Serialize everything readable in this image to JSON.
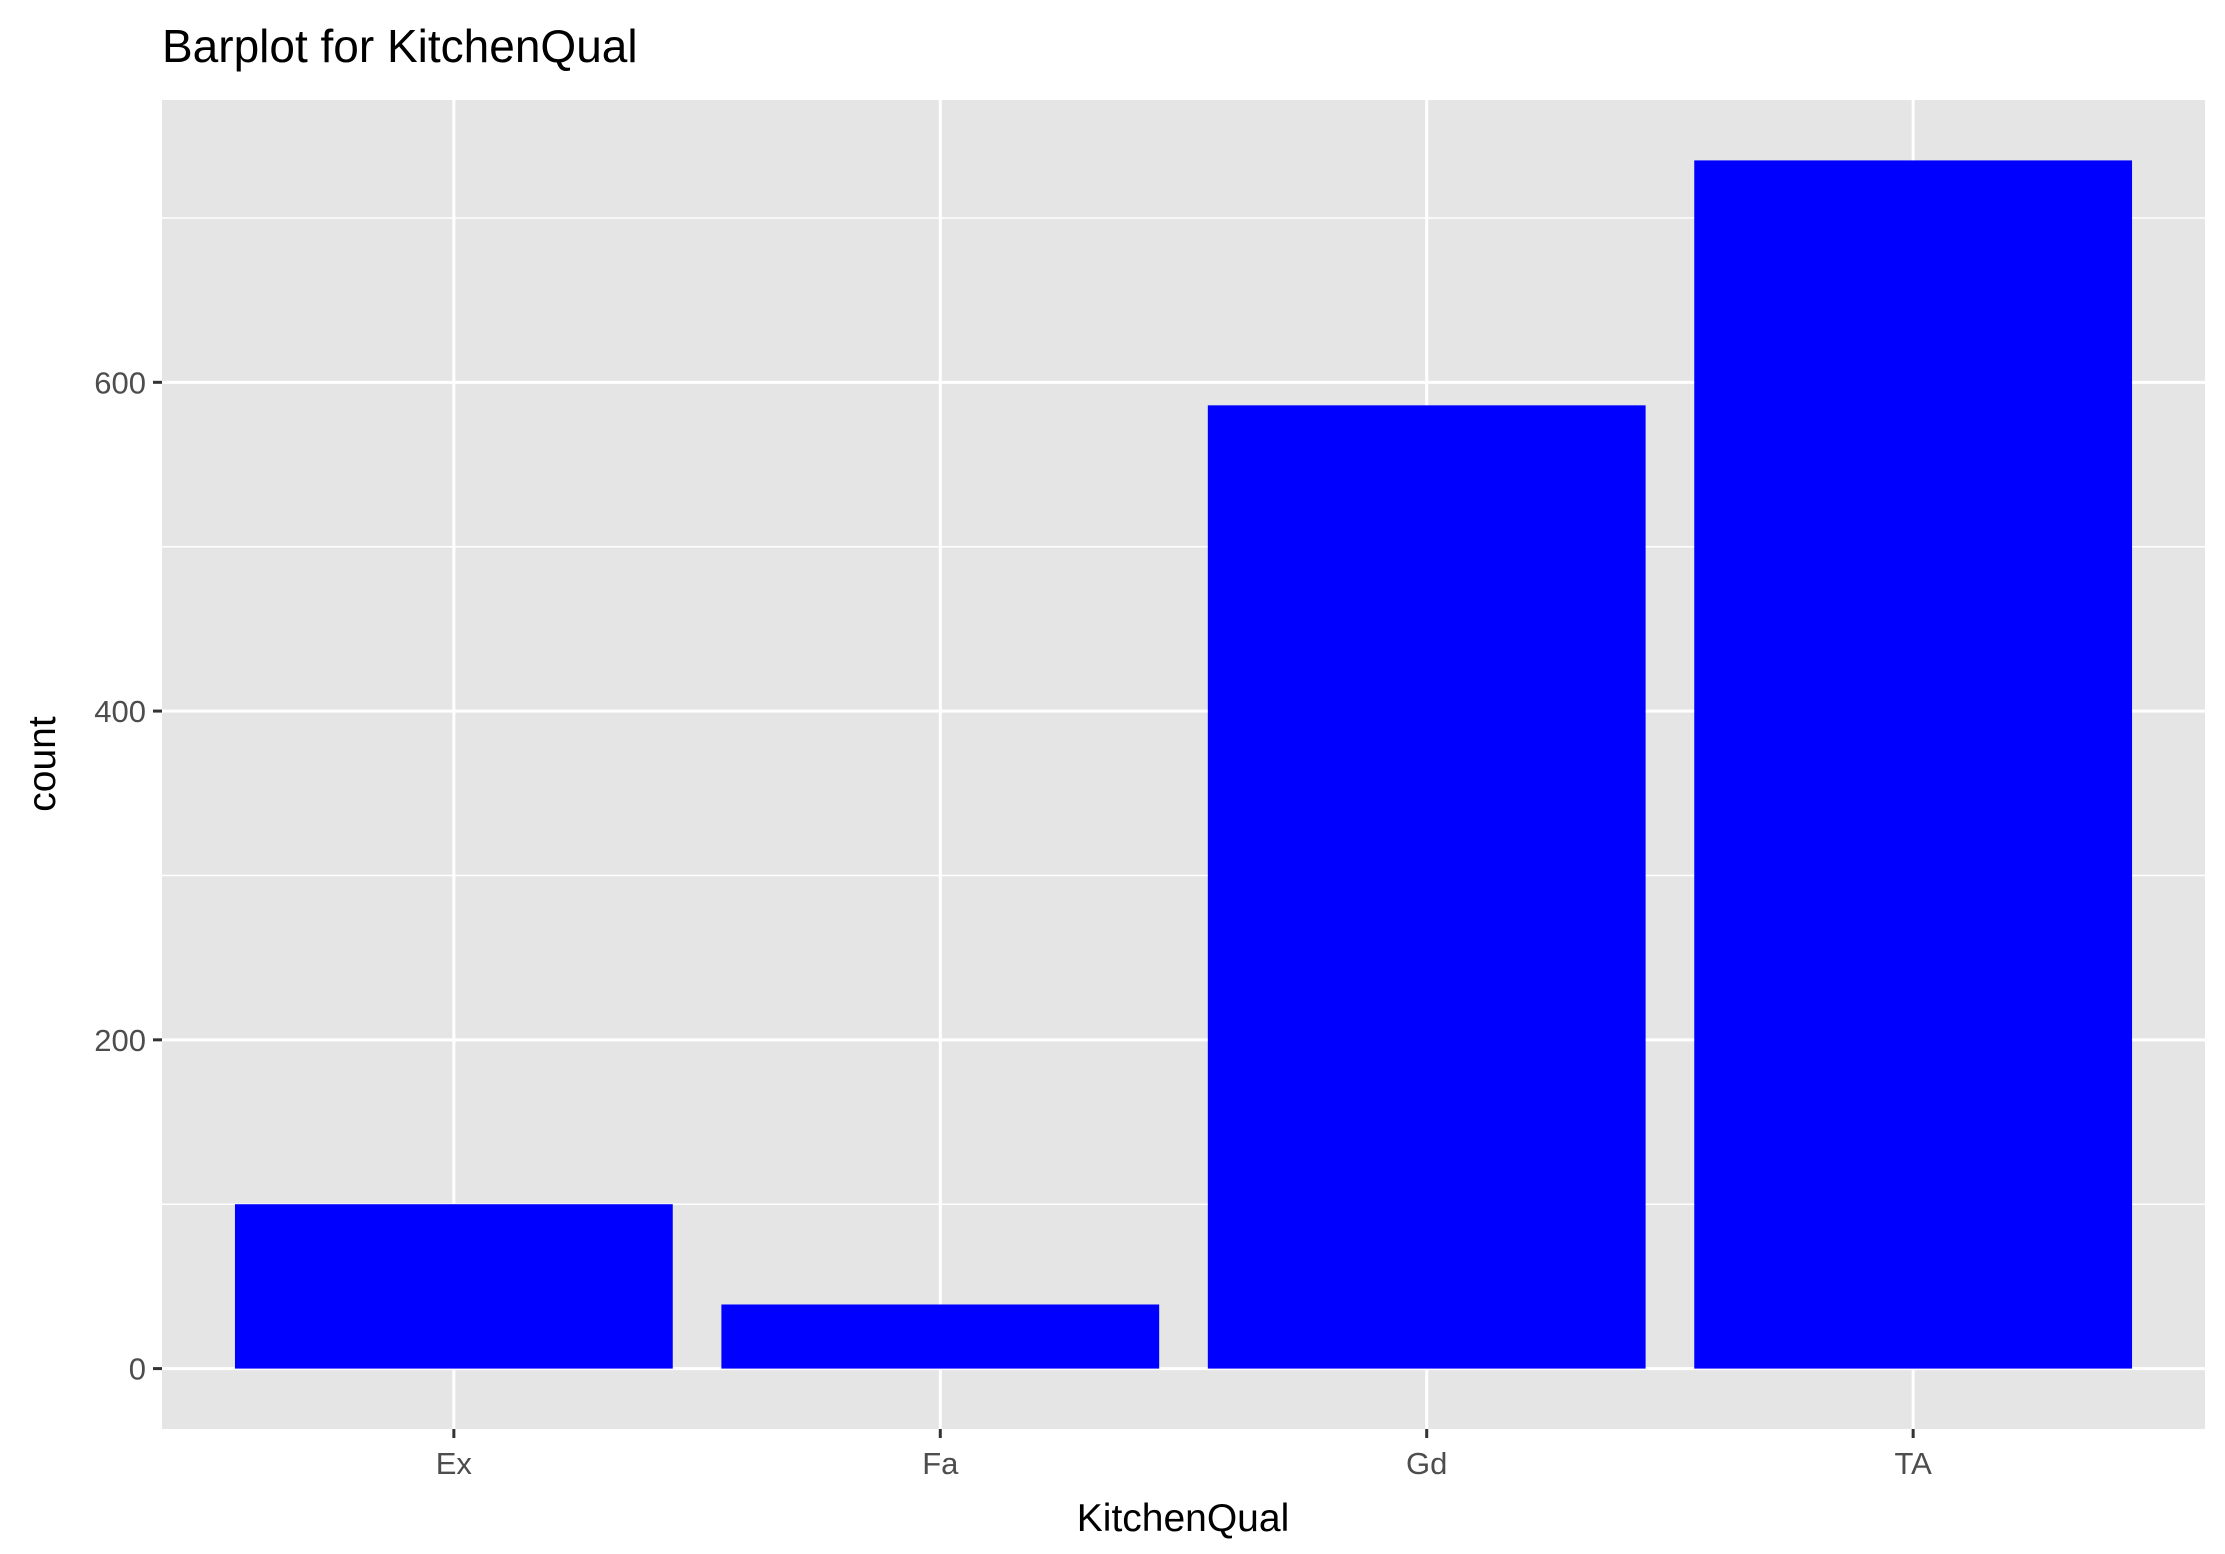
{
  "chart_data": {
    "type": "bar",
    "title": "Barplot for KitchenQual",
    "xlabel": "KitchenQual",
    "ylabel": "count",
    "categories": [
      "Ex",
      "Fa",
      "Gd",
      "TA"
    ],
    "values": [
      100,
      39,
      586,
      735
    ],
    "yticks": [
      0,
      200,
      400,
      600
    ],
    "ylim": [
      -36.75,
      771.75
    ],
    "grid": true,
    "legend": "none",
    "colors": {
      "bar": "#0000FF",
      "panel": "#E5E5E5",
      "grid": "#FFFFFF",
      "tick": "#333333"
    }
  }
}
